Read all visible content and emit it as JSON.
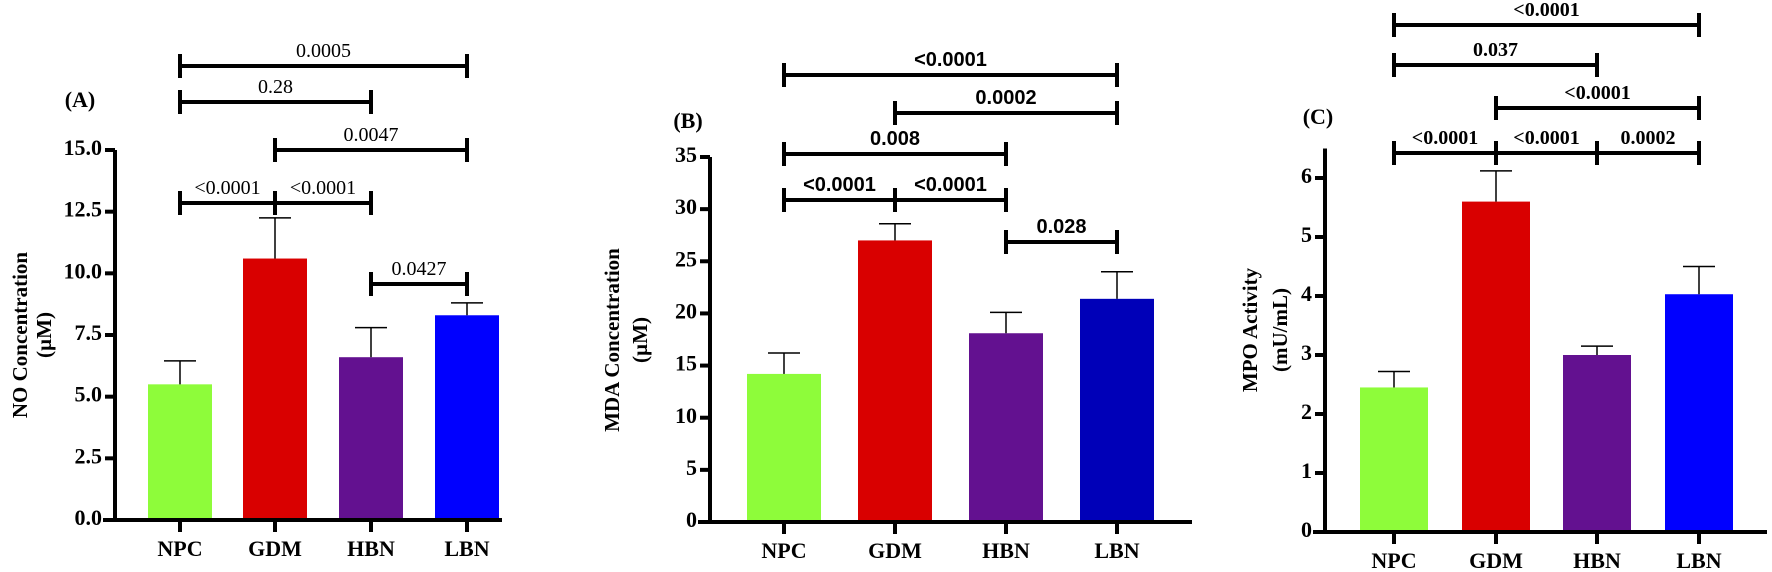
{
  "chart_data": [
    {
      "type": "bar",
      "panel_label": "(A)",
      "ylabel": [
        "NO Concentration",
        "(µM)"
      ],
      "categories": [
        "NPC",
        "GDM",
        "HBN",
        "LBN"
      ],
      "values": [
        5.5,
        10.6,
        6.6,
        8.3
      ],
      "error_upper": [
        0.95,
        1.65,
        1.2,
        0.5
      ],
      "colors": [
        "#8efc3a",
        "#d90000",
        "#631190",
        "#0000ff"
      ],
      "ylim": [
        0,
        15
      ],
      "yticks": [
        "0.0",
        "2.5",
        "5.0",
        "7.5",
        "10.0",
        "12.5",
        "15.0"
      ],
      "comparisons": [
        {
          "from": "NPC",
          "to": "LBN",
          "p": "0.0005"
        },
        {
          "from": "NPC",
          "to": "HBN",
          "p": "0.28"
        },
        {
          "from": "GDM",
          "to": "LBN",
          "p": "0.0047"
        },
        {
          "from": "NPC",
          "to": "GDM",
          "p": "<0.0001"
        },
        {
          "from": "GDM",
          "to": "HBN",
          "p": "<0.0001"
        },
        {
          "from": "HBN",
          "to": "LBN",
          "p": "0.0427"
        }
      ]
    },
    {
      "type": "bar",
      "panel_label": "(B)",
      "ylabel": [
        "MDA Concentration",
        "(µM)"
      ],
      "categories": [
        "NPC",
        "GDM",
        "HBN",
        "LBN"
      ],
      "values": [
        14.2,
        27.0,
        18.1,
        21.4
      ],
      "error_upper": [
        2.0,
        1.6,
        2.0,
        2.6
      ],
      "colors": [
        "#8efc3a",
        "#d90000",
        "#631190",
        "#0000b8"
      ],
      "ylim": [
        0,
        35
      ],
      "yticks": [
        "0",
        "5",
        "10",
        "15",
        "20",
        "25",
        "30",
        "35"
      ],
      "comparisons": [
        {
          "from": "NPC",
          "to": "LBN",
          "p": "<0.0001"
        },
        {
          "from": "GDM",
          "to": "LBN",
          "p": "0.0002"
        },
        {
          "from": "NPC",
          "to": "HBN",
          "p": "0.008"
        },
        {
          "from": "NPC",
          "to": "GDM",
          "p": "<0.0001"
        },
        {
          "from": "GDM",
          "to": "HBN",
          "p": "<0.0001"
        },
        {
          "from": "HBN",
          "to": "LBN",
          "p": "0.028"
        }
      ]
    },
    {
      "type": "bar",
      "panel_label": "(C)",
      "ylabel": [
        "MPO Activity",
        "(mU/mL)"
      ],
      "categories": [
        "NPC",
        "GDM",
        "HBN",
        "LBN"
      ],
      "values": [
        2.45,
        5.6,
        3.0,
        4.03
      ],
      "error_upper": [
        0.27,
        0.52,
        0.15,
        0.47
      ],
      "colors": [
        "#8efc3a",
        "#d90000",
        "#631190",
        "#0000ff"
      ],
      "ylim": [
        0,
        6
      ],
      "yticks": [
        "0",
        "1",
        "2",
        "3",
        "4",
        "5",
        "6"
      ],
      "comparisons": [
        {
          "from": "NPC",
          "to": "LBN",
          "p": "<0.0001"
        },
        {
          "from": "NPC",
          "to": "HBN",
          "p": "0.037"
        },
        {
          "from": "GDM",
          "to": "LBN",
          "p": "<0.0001"
        },
        {
          "from": "NPC",
          "to": "GDM",
          "p": "<0.0001"
        },
        {
          "from": "GDM",
          "to": "HBN",
          "p": "<0.0001"
        },
        {
          "from": "HBN",
          "to": "LBN",
          "p": "0.0002"
        }
      ]
    }
  ]
}
